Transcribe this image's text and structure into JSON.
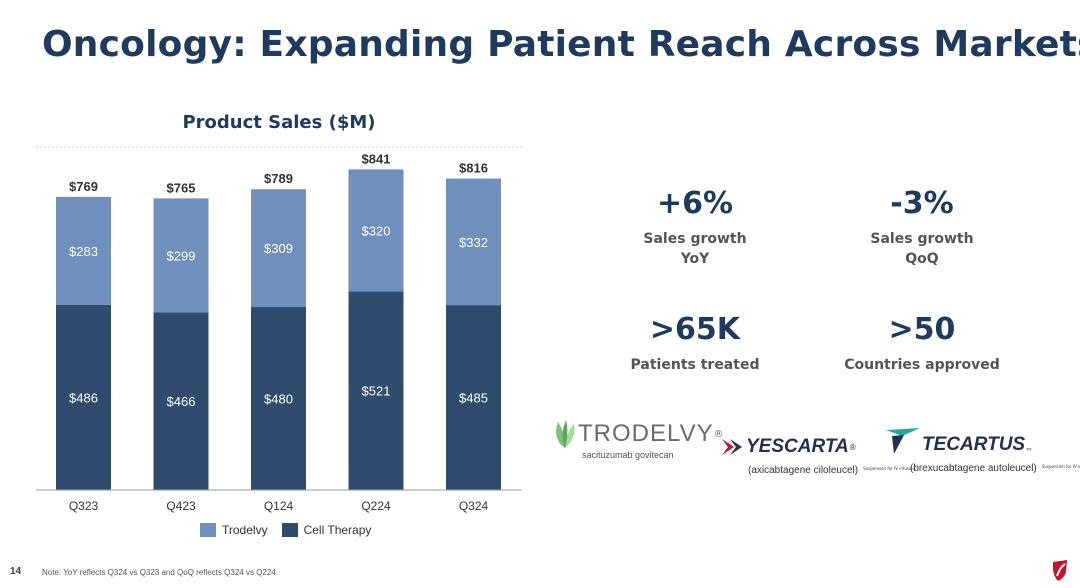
{
  "slide": {
    "title": "Oncology: Expanding Patient Reach Across Markets",
    "page_number": "14",
    "note": "Note: YoY reflects Q324 vs Q323 and QoQ reflects Q324 vs Q224."
  },
  "chart_data": {
    "type": "bar",
    "stacked": true,
    "title": "Product Sales ($M)",
    "categories": [
      "Q323",
      "Q423",
      "Q124",
      "Q224",
      "Q324"
    ],
    "series": [
      {
        "name": "Cell Therapy",
        "values": [
          486,
          466,
          480,
          521,
          485
        ],
        "labels": [
          "$486",
          "$466",
          "$480",
          "$521",
          "$485"
        ],
        "color": "#2f4b6e"
      },
      {
        "name": "Trodelvy",
        "values": [
          283,
          299,
          309,
          320,
          332
        ],
        "labels": [
          "$283",
          "$299",
          "$309",
          "$320",
          "$332"
        ],
        "color": "#6f8fbd"
      }
    ],
    "totals": [
      769,
      765,
      789,
      841,
      816
    ],
    "total_labels": [
      "$769",
      "$765",
      "$789",
      "$841",
      "$816"
    ],
    "ylim": [
      0,
      900
    ],
    "legend_position": "bottom",
    "grid": false
  },
  "kpis": [
    {
      "value": "+6%",
      "label_line1": "Sales growth",
      "label_line2": "YoY"
    },
    {
      "value": "-3%",
      "label_line1": "Sales growth",
      "label_line2": "QoQ"
    },
    {
      "value": ">65K",
      "label_line1": "Patients treated",
      "label_line2": ""
    },
    {
      "value": ">50",
      "label_line1": "Countries approved",
      "label_line2": ""
    }
  ],
  "logos": {
    "trodelvy": {
      "name": "TRODELVY",
      "mark": "®",
      "generic": "sacituzumab govitecan"
    },
    "yescarta": {
      "name": "YESCARTA",
      "mark": "®",
      "generic": "(axicabtagene ciloleucel)",
      "form": "Suspension for IV infusion"
    },
    "tecartus": {
      "name": "TECARTUS",
      "mark": "™",
      "generic": "(brexucabtagene autoleucel)",
      "form": "Suspension for IV infusion"
    }
  },
  "colors": {
    "title": "#1f3a5f",
    "brand_red": "#c8102e",
    "trodelvy_green": "#7cc47a"
  }
}
